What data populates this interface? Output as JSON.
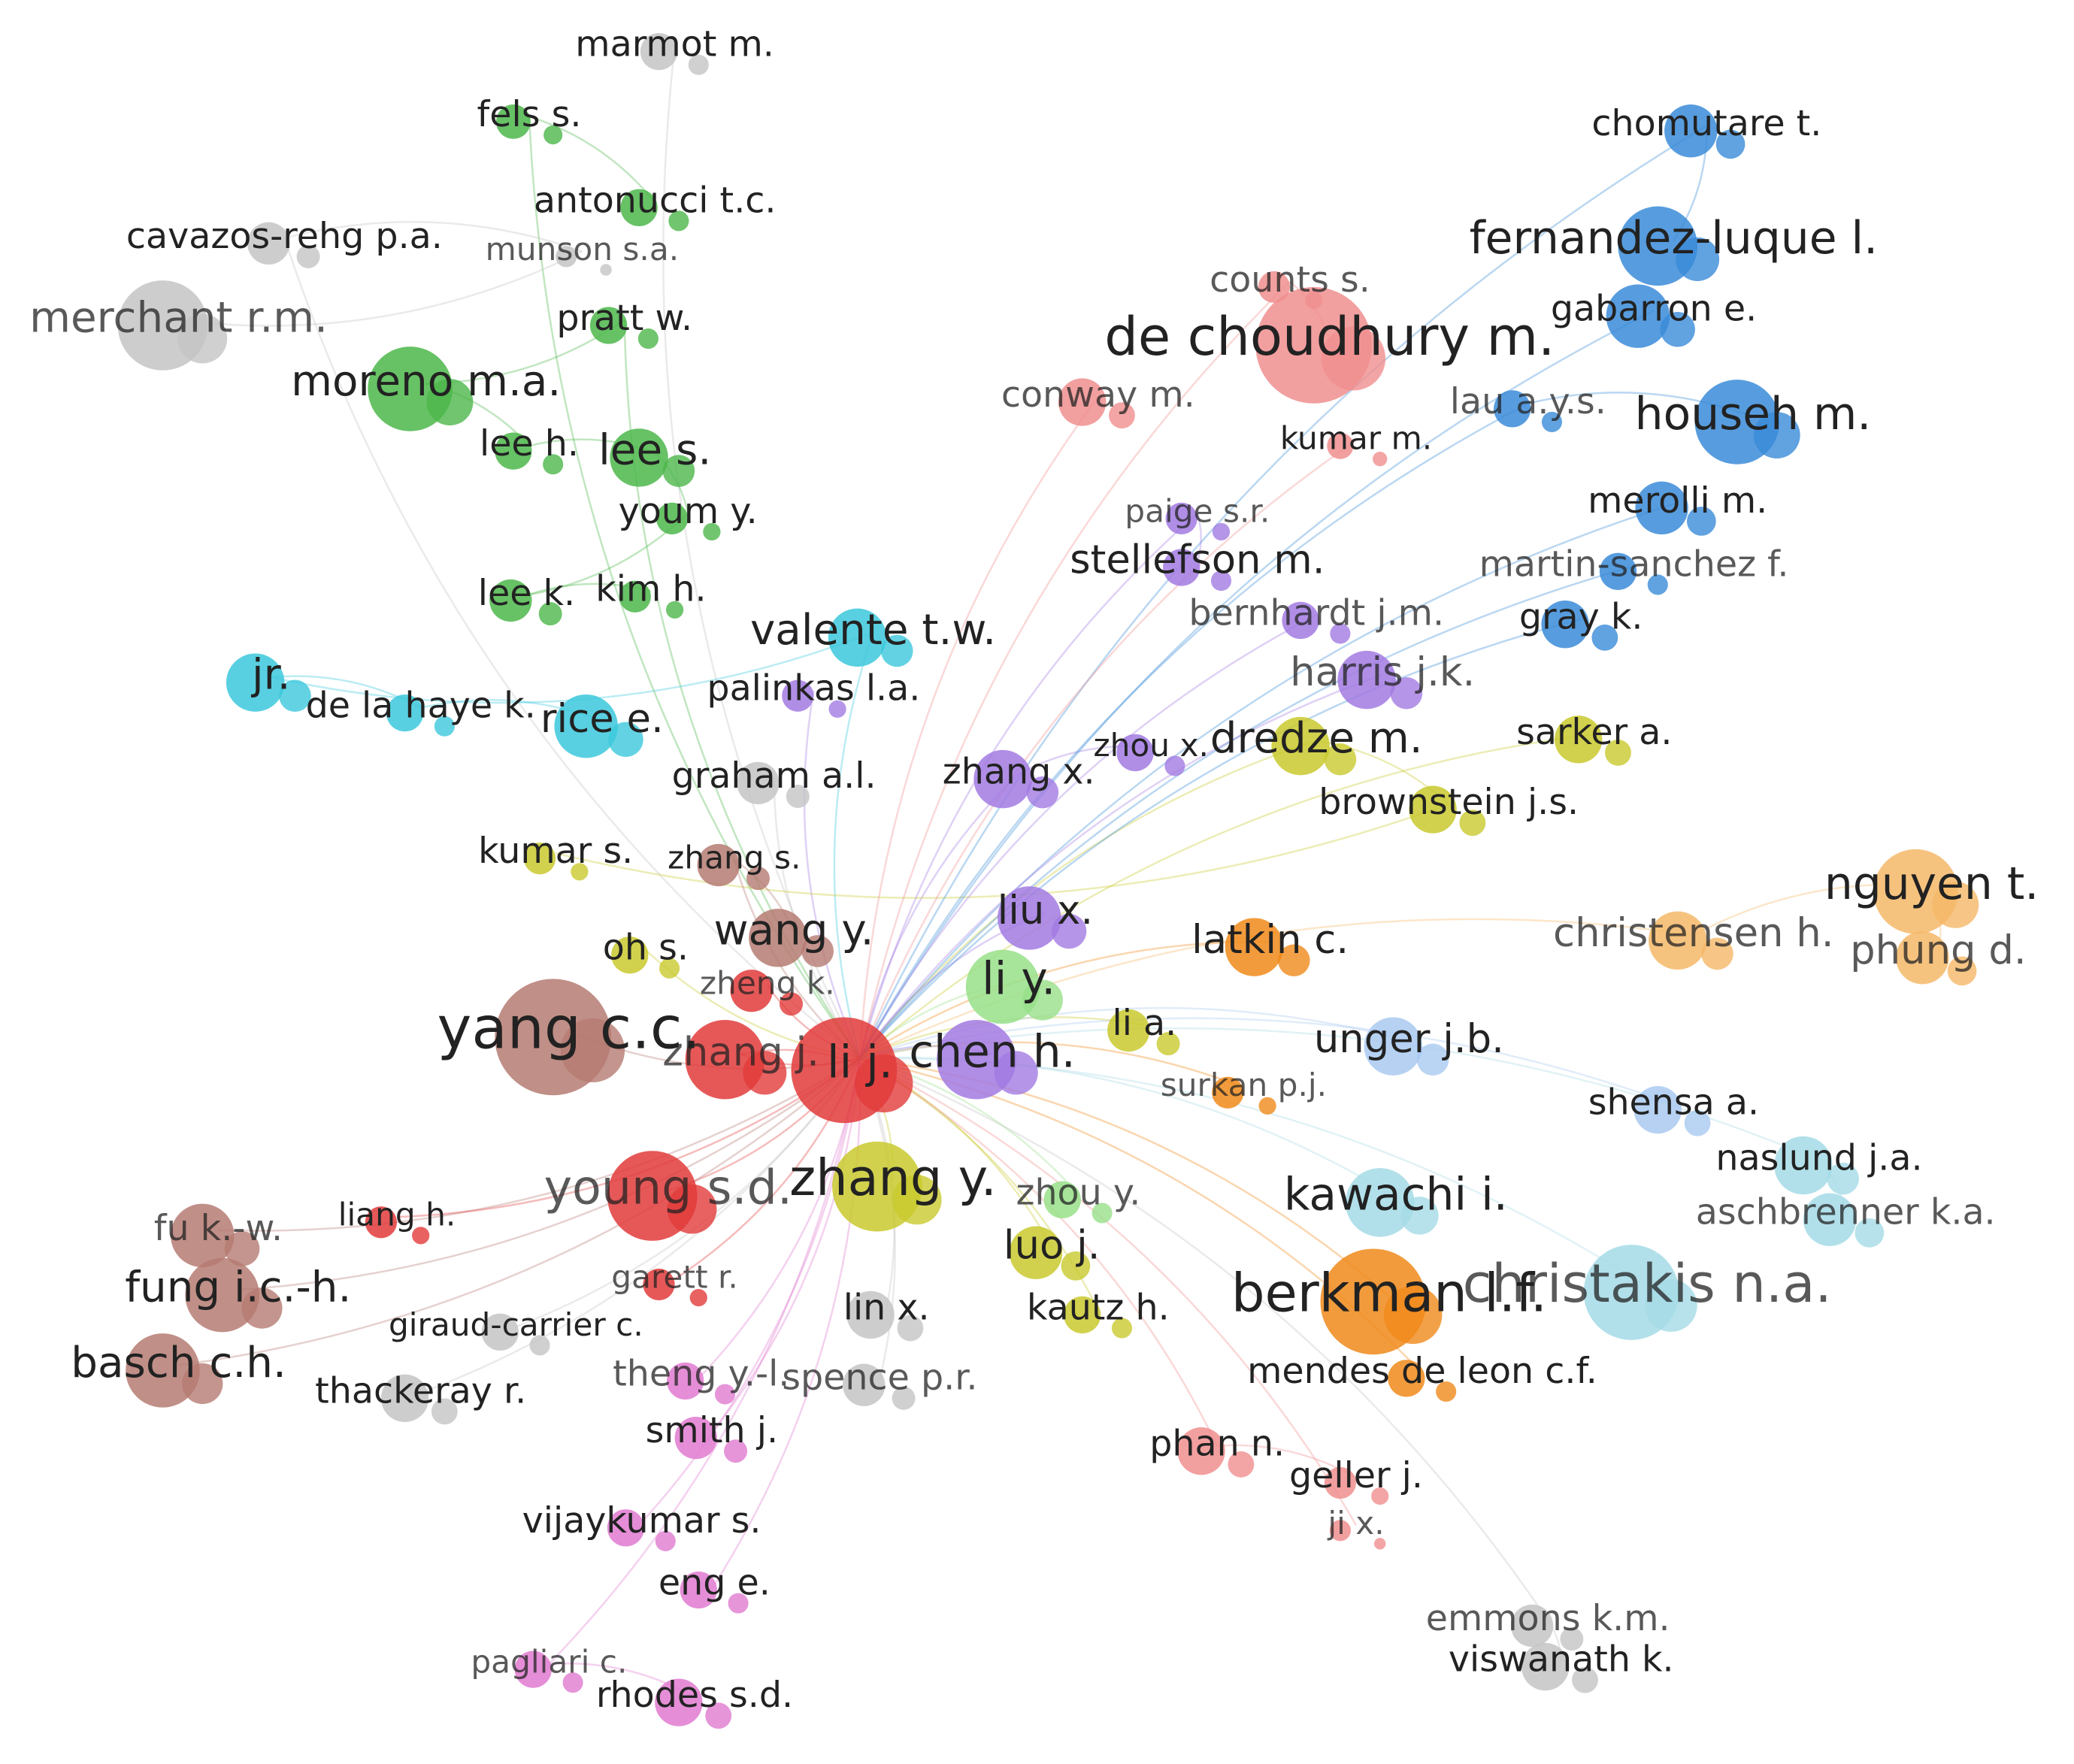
{
  "nodes": [
    {
      "label": "marmot m."
    },
    {
      "label": "fels s."
    },
    {
      "label": "antonucci t.c."
    },
    {
      "label": "cavazos-rehg p.a."
    },
    {
      "label": "munson s.a."
    },
    {
      "label": "merchant r.m."
    },
    {
      "label": "pratt w."
    },
    {
      "label": "moreno m.a."
    },
    {
      "label": "lee h."
    },
    {
      "label": "lee s."
    },
    {
      "label": "youm y."
    },
    {
      "label": "lee k."
    },
    {
      "label": "kim h."
    },
    {
      "label": "valente t.w."
    },
    {
      "label": "jr."
    },
    {
      "label": "de la haye k."
    },
    {
      "label": "rice e."
    },
    {
      "label": "palinkas l.a."
    },
    {
      "label": "graham a.l."
    },
    {
      "label": "zhang x."
    },
    {
      "label": "zhou x."
    },
    {
      "label": "dredze m."
    },
    {
      "label": "brownstein j.s."
    },
    {
      "label": "kumar s."
    },
    {
      "label": "zhang s."
    },
    {
      "label": "wang y."
    },
    {
      "label": "oh s."
    },
    {
      "label": "liu x."
    },
    {
      "label": "latkin c."
    },
    {
      "label": "christensen h."
    },
    {
      "label": "nguyen t."
    },
    {
      "label": "phung d."
    },
    {
      "label": "yang c.c."
    },
    {
      "label": "zheng k."
    },
    {
      "label": "li y."
    },
    {
      "label": "li a."
    },
    {
      "label": "unger j.b."
    },
    {
      "label": "zhang j."
    },
    {
      "label": "li j."
    },
    {
      "label": "chen h."
    },
    {
      "label": "surkan p.j."
    },
    {
      "label": "shensa a."
    },
    {
      "label": "naslund j.a."
    },
    {
      "label": "aschbrenner k.a."
    },
    {
      "label": "young s.d."
    },
    {
      "label": "zhang y."
    },
    {
      "label": "zhou y."
    },
    {
      "label": "kawachi i."
    },
    {
      "label": "fu k.-w."
    },
    {
      "label": "liang h."
    },
    {
      "label": "luo j."
    },
    {
      "label": "fung i.c.-h."
    },
    {
      "label": "garett r."
    },
    {
      "label": "lin x."
    },
    {
      "label": "kautz h."
    },
    {
      "label": "berkman l.f."
    },
    {
      "label": "christakis n.a."
    },
    {
      "label": "giraud-carrier c."
    },
    {
      "label": "basch c.h."
    },
    {
      "label": "thackeray r."
    },
    {
      "label": "theng y.-l."
    },
    {
      "label": "spence p.r."
    },
    {
      "label": "mendes de leon c.f."
    },
    {
      "label": "smith j."
    },
    {
      "label": "phan n."
    },
    {
      "label": "geller j."
    },
    {
      "label": "vijaykumar s."
    },
    {
      "label": "ji x."
    },
    {
      "label": "eng e."
    },
    {
      "label": "emmons k.m."
    },
    {
      "label": "viswanath k."
    },
    {
      "label": "pagliari c."
    },
    {
      "label": "rhodes s.d."
    },
    {
      "label": "chomutare t."
    },
    {
      "label": "fernandez-luque l."
    },
    {
      "label": "counts s."
    },
    {
      "label": "de choudhury m."
    },
    {
      "label": "gabarron e."
    },
    {
      "label": "conway m."
    },
    {
      "label": "lau a.y.s."
    },
    {
      "label": "househ m."
    },
    {
      "label": "kumar m."
    },
    {
      "label": "merolli m."
    },
    {
      "label": "paige s.r."
    },
    {
      "label": "stellefson m."
    },
    {
      "label": "martin-sanchez f."
    },
    {
      "label": "bernhardt j.m."
    },
    {
      "label": "gray k."
    },
    {
      "label": "harris j.k."
    },
    {
      "label": "sarker a."
    }
  ]
}
